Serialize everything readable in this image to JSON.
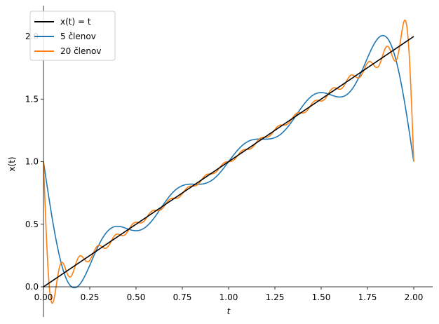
{
  "chart_data": {
    "type": "line",
    "title": "",
    "xlabel": "t",
    "ylabel": "x(t)",
    "xlim": [
      -0.01,
      2.1
    ],
    "ylim": [
      -0.11,
      2.26
    ],
    "x_ticks": [
      0.0,
      0.25,
      0.5,
      0.75,
      1.0,
      1.25,
      1.5,
      1.75,
      2.0
    ],
    "x_tick_labels": [
      "0.00",
      "0.25",
      "0.50",
      "0.75",
      "1.00",
      "1.25",
      "1.50",
      "1.75",
      "2.00"
    ],
    "y_ticks": [
      0.0,
      0.5,
      1.0,
      1.5,
      2.0
    ],
    "y_tick_labels": [
      "0.0",
      "0.5",
      "1.0",
      "1.5",
      "2.0"
    ],
    "grid": false,
    "legend_position": "top-left",
    "x_range": [
      0,
      2
    ],
    "series": [
      {
        "name": "x(t) = t",
        "color": "#000000",
        "function": "identity"
      },
      {
        "name": "5 členov",
        "color": "#1f77b4",
        "function": "fourier_partial_sum",
        "terms": 5
      },
      {
        "name": "20 členov",
        "color": "#ff7f0e",
        "function": "fourier_partial_sum",
        "terms": 20
      }
    ]
  }
}
